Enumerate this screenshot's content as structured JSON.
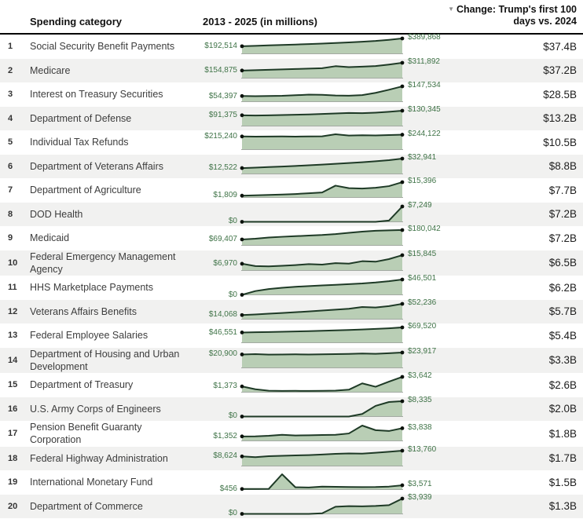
{
  "header": {
    "category_label": "Spending category",
    "chart_label": "2013 - 2025 (in millions)",
    "change_label_line1": "Change: Trump's first 100",
    "change_label_line2": "days vs. 2024",
    "sort_icon_glyph": "▼"
  },
  "colors": {
    "spark_line": "#1e3a26",
    "spark_fill": "#b9ceb5",
    "spark_dot": "#0b120c",
    "spark_baseline": "#a3aaa2",
    "value_label": "#3f7347",
    "alt_row_bg": "#f1f1f0",
    "header_rule": "#000000",
    "sort_icon_color": "#8e8e8e"
  },
  "chart_data": {
    "type": "line",
    "note_type": "sparkline-table, one zero-based line+area series per row, years 2013-2025",
    "x_range": [
      2013,
      2025
    ],
    "columns": [
      "rank",
      "Spending category",
      "2013 - 2025 (in millions)",
      "Change: Trump's first 100 days vs. 2024"
    ],
    "rows": [
      {
        "rank": "1",
        "category": "Social Security Benefit Payments",
        "start_label": "$192,514",
        "end_label": "$389,868",
        "change": "$37.4B",
        "series": [
          192514,
          203000,
          214000,
          225000,
          236000,
          248000,
          261000,
          275000,
          290000,
          307000,
          327000,
          356000,
          389868
        ]
      },
      {
        "rank": "2",
        "category": "Medicare",
        "start_label": "$154,875",
        "end_label": "$311,892",
        "change": "$37.2B",
        "series": [
          154875,
          162000,
          170000,
          177000,
          185000,
          193000,
          202000,
          243000,
          224000,
          233000,
          246000,
          276000,
          311892
        ]
      },
      {
        "rank": "3",
        "category": "Interest on Treasury Securities",
        "start_label": "$54,397",
        "end_label": "$147,534",
        "change": "$28.5B",
        "series": [
          54397,
          53000,
          55000,
          57000,
          62000,
          68000,
          66000,
          60000,
          58000,
          63000,
          85000,
          115000,
          147534
        ]
      },
      {
        "rank": "4",
        "category": "Department of Defense",
        "start_label": "$91,375",
        "end_label": "$130,345",
        "change": "$13.2B",
        "series": [
          91375,
          89500,
          91000,
          93500,
          96000,
          99000,
          103000,
          107000,
          111000,
          109500,
          114000,
          121000,
          130345
        ]
      },
      {
        "rank": "5",
        "category": "Individual Tax Refunds",
        "start_label": "$215,240",
        "end_label": "$244,122",
        "change": "$10.5B",
        "series": [
          215240,
          212500,
          214500,
          216000,
          213500,
          215500,
          218000,
          251500,
          230500,
          235500,
          232500,
          238500,
          244122
        ]
      },
      {
        "rank": "6",
        "category": "Department of Veterans Affairs",
        "start_label": "$12,522",
        "end_label": "$32,941",
        "change": "$8.8B",
        "series": [
          12522,
          13600,
          14700,
          15900,
          17200,
          18600,
          20100,
          21700,
          23400,
          25200,
          27200,
          29500,
          32941
        ]
      },
      {
        "rank": "7",
        "category": "Department of Agriculture",
        "start_label": "$1,809",
        "end_label": "$15,396",
        "change": "$7.7B",
        "series": [
          1809,
          2200,
          2600,
          3000,
          3500,
          4200,
          5000,
          11900,
          9400,
          9000,
          9800,
          11400,
          15396
        ]
      },
      {
        "rank": "8",
        "category": "DOD Health",
        "start_label": "$0",
        "end_label": "$7,249",
        "change": "$7.2B",
        "series": [
          0,
          0,
          0,
          0,
          0,
          0,
          0,
          0,
          0,
          0,
          0,
          600,
          7249
        ]
      },
      {
        "rank": "9",
        "category": "Medicaid",
        "start_label": "$69,407",
        "end_label": "$180,042",
        "change": "$7.2B",
        "series": [
          69407,
          78000,
          92000,
          101000,
          108000,
          115000,
          122000,
          133000,
          148000,
          162000,
          172000,
          177000,
          180042
        ]
      },
      {
        "rank": "10",
        "category": "Federal Emergency Management Agency",
        "start_label": "$6,970",
        "end_label": "$15,845",
        "change": "$6.5B",
        "series": [
          6970,
          4600,
          4300,
          4900,
          5600,
          6600,
          6100,
          7600,
          7100,
          9600,
          9100,
          11800,
          15845
        ]
      },
      {
        "rank": "11",
        "category": "HHS Marketplace Payments",
        "start_label": "$0",
        "end_label": "$46,501",
        "change": "$6.2B",
        "series": [
          0,
          11500,
          17500,
          21500,
          24500,
          26500,
          28500,
          30500,
          32500,
          34500,
          37500,
          41500,
          46501
        ]
      },
      {
        "rank": "12",
        "category": "Veterans Affairs Benefits",
        "start_label": "$14,068",
        "end_label": "$52,236",
        "change": "$5.7B",
        "series": [
          14068,
          16200,
          18600,
          21200,
          23800,
          26500,
          29500,
          32500,
          35500,
          41500,
          40000,
          44500,
          52236
        ]
      },
      {
        "rank": "13",
        "category": "Federal Employee Salaries",
        "start_label": "$46,551",
        "end_label": "$69,520",
        "change": "$5.4B",
        "series": [
          46551,
          47600,
          48700,
          49900,
          51200,
          52600,
          54200,
          56000,
          58000,
          60200,
          62700,
          65700,
          69520
        ]
      },
      {
        "rank": "14",
        "category": "Department of Housing and Urban Development",
        "start_label": "$20,900",
        "end_label": "$23,917",
        "change": "$3.3B",
        "series": [
          20900,
          21400,
          20700,
          20900,
          21100,
          20900,
          21200,
          21400,
          21700,
          22400,
          21900,
          22900,
          23917
        ]
      },
      {
        "rank": "15",
        "category": "Department of Treasury",
        "start_label": "$1,373",
        "end_label": "$3,642",
        "change": "$2.6B",
        "series": [
          1373,
          700,
          350,
          300,
          320,
          300,
          320,
          380,
          600,
          2100,
          1300,
          2500,
          3642
        ]
      },
      {
        "rank": "16",
        "category": "U.S. Army Corps of Engineers",
        "start_label": "$0",
        "end_label": "$8,335",
        "change": "$2.0B",
        "series": [
          0,
          0,
          0,
          0,
          0,
          0,
          0,
          0,
          0,
          1400,
          5800,
          7900,
          8335
        ]
      },
      {
        "rank": "17",
        "category": "Pension Benefit Guaranty Corporation",
        "start_label": "$1,352",
        "end_label": "$3,838",
        "change": "$1.8B",
        "series": [
          1352,
          1380,
          1550,
          1850,
          1650,
          1700,
          1780,
          1850,
          2250,
          4650,
          3250,
          3000,
          3838
        ]
      },
      {
        "rank": "18",
        "category": "Federal Highway Administration",
        "start_label": "$8,624",
        "end_label": "$13,760",
        "change": "$1.7B",
        "series": [
          8624,
          7900,
          8800,
          9200,
          9500,
          9800,
          10300,
          10900,
          11300,
          11100,
          11900,
          12800,
          13760
        ]
      },
      {
        "rank": "19",
        "category": "International Monetary Fund",
        "start_label": "$456",
        "end_label": "$3,571",
        "change": "$1.5B",
        "series": [
          456,
          480,
          550,
          12800,
          1900,
          1750,
          2500,
          2300,
          2150,
          2050,
          2150,
          2500,
          3571
        ]
      },
      {
        "rank": "20",
        "category": "Department of Commerce",
        "start_label": "$0",
        "end_label": "$3,939",
        "change": "$1.3B",
        "series": [
          0,
          0,
          0,
          0,
          0,
          0,
          150,
          1850,
          2000,
          1950,
          2050,
          2250,
          3939
        ]
      }
    ]
  }
}
